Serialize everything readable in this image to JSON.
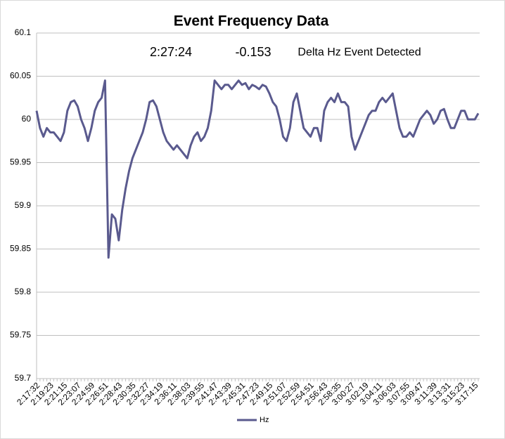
{
  "chart_data": {
    "type": "line",
    "title": "Event Frequency Data",
    "annotations": [
      "2:27:24",
      "-0.153",
      "Delta Hz Event Detected"
    ],
    "categories": [
      "2:17:32",
      null,
      null,
      null,
      "2:19:23",
      null,
      null,
      null,
      "2:21:15",
      null,
      null,
      null,
      "2:23:07",
      null,
      null,
      null,
      "2:24:59",
      null,
      null,
      null,
      "2:26:51",
      null,
      null,
      null,
      "2:28:43",
      null,
      null,
      null,
      "2:30:35",
      null,
      null,
      null,
      "2:32:27",
      null,
      null,
      null,
      "2:34:19",
      null,
      null,
      null,
      "2:36:11",
      null,
      null,
      null,
      "2:38:03",
      null,
      null,
      null,
      "2:39:55",
      null,
      null,
      null,
      "2:41:47",
      null,
      null,
      null,
      "2:43:39",
      null,
      null,
      null,
      "2:45:31",
      null,
      null,
      null,
      "2:47:23",
      null,
      null,
      null,
      "2:49:15",
      null,
      null,
      null,
      "2:51:07",
      null,
      null,
      null,
      "2:52:59",
      null,
      null,
      null,
      "2:54:51",
      null,
      null,
      null,
      "2:56:43",
      null,
      null,
      null,
      "2:58:35",
      null,
      null,
      null,
      "3:00:27",
      null,
      null,
      null,
      "3:02:19",
      null,
      null,
      null,
      "3:04:11",
      null,
      null,
      null,
      "3:06:03",
      null,
      null,
      null,
      "3:07:55",
      null,
      null,
      null,
      "3:09:47",
      null,
      null,
      null,
      "3:11:39",
      null,
      null,
      null,
      "3:13:31",
      null,
      null,
      null,
      "3:15:23",
      null,
      null,
      null,
      "3:17:15",
      null
    ],
    "series": [
      {
        "name": "Hz",
        "color": "#5a5a8e",
        "values": [
          60.01,
          59.99,
          59.98,
          59.99,
          59.985,
          59.985,
          59.98,
          59.975,
          59.985,
          60.01,
          60.02,
          60.022,
          60.015,
          60.0,
          59.99,
          59.975,
          59.99,
          60.01,
          60.02,
          60.025,
          60.045,
          59.84,
          59.89,
          59.885,
          59.86,
          59.895,
          59.92,
          59.94,
          59.955,
          59.965,
          59.975,
          59.985,
          60.0,
          60.02,
          60.022,
          60.015,
          60.0,
          59.985,
          59.975,
          59.97,
          59.965,
          59.97,
          59.965,
          59.96,
          59.955,
          59.97,
          59.98,
          59.985,
          59.975,
          59.98,
          59.99,
          60.01,
          60.045,
          60.04,
          60.035,
          60.04,
          60.04,
          60.035,
          60.04,
          60.045,
          60.04,
          60.042,
          60.035,
          60.04,
          60.038,
          60.035,
          60.04,
          60.038,
          60.03,
          60.02,
          60.015,
          60.0,
          59.98,
          59.975,
          59.99,
          60.02,
          60.03,
          60.01,
          59.99,
          59.985,
          59.98,
          59.99,
          59.99,
          59.975,
          60.01,
          60.02,
          60.025,
          60.02,
          60.03,
          60.02,
          60.02,
          60.015,
          59.98,
          59.965,
          59.975,
          59.985,
          59.995,
          60.005,
          60.01,
          60.01,
          60.02,
          60.025,
          60.02,
          60.025,
          60.03,
          60.01,
          59.99,
          59.98,
          59.98,
          59.985,
          59.98,
          59.99,
          60.0,
          60.005,
          60.01,
          60.005,
          59.995,
          60.0,
          60.01,
          60.012,
          60.0,
          59.99,
          59.99,
          60.0,
          60.01,
          60.01,
          60.0,
          60.0,
          60.0,
          60.007
        ]
      }
    ],
    "ylim": [
      59.7,
      60.1
    ],
    "yticks": [
      59.7,
      59.75,
      59.8,
      59.85,
      59.9,
      59.95,
      60,
      60.05,
      60.1
    ],
    "grid": true
  }
}
